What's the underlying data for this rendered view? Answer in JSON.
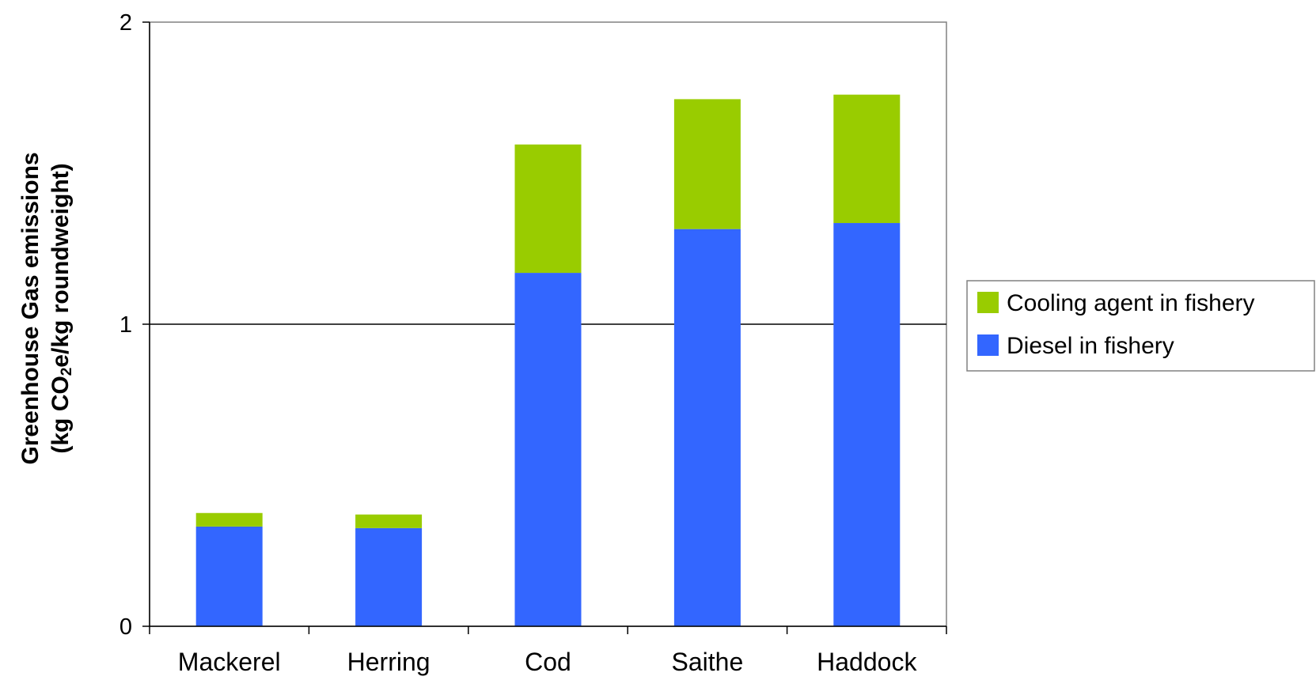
{
  "chart_data": {
    "type": "bar",
    "stacked": true,
    "categories": [
      "Mackerel",
      "Herring",
      "Cod",
      "Saithe",
      "Haddock"
    ],
    "series": [
      {
        "name": "Diesel in fishery",
        "color": "#3366FF",
        "values": [
          0.33,
          0.325,
          1.17,
          1.315,
          1.335
        ]
      },
      {
        "name": "Cooling agent in fishery",
        "color": "#99CC00",
        "values": [
          0.045,
          0.045,
          0.425,
          0.43,
          0.425
        ]
      }
    ],
    "title": "",
    "xlabel": "",
    "ylabel_line1": "Greenhouse Gas emissions",
    "ylabel_line2_before_sub": "(kg CO",
    "ylabel_line2_sub": "2",
    "ylabel_line2_after_sub": "e/kg roundweight)",
    "ylim": [
      0,
      2
    ],
    "yticks": [
      "0",
      "1",
      "2"
    ],
    "gridlines_y": [
      1
    ],
    "legend_position": "right",
    "legend_order": [
      "Cooling agent in fishery",
      "Diesel in fishery"
    ]
  }
}
